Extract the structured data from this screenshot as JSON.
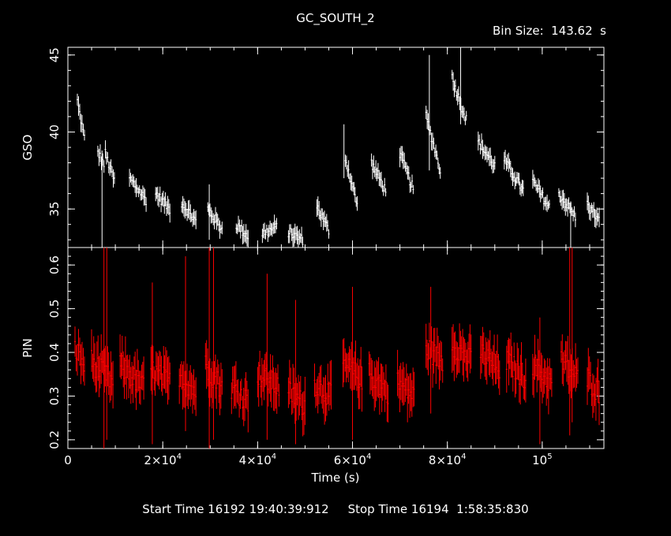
{
  "chart_data": {
    "type": "line",
    "title": "GC_SOUTH_2",
    "bin_size_label": "Bin Size:  143.62  s",
    "xlabel": "Time (s)",
    "start_time_label": "Start Time 16192 19:40:39:912",
    "stop_time_label": "Stop Time 16194  1:58:35:830",
    "x_range": [
      0,
      113000
    ],
    "x_ticks": [
      {
        "value": 0,
        "label": "0"
      },
      {
        "value": 20000,
        "label": "2×10",
        "exp": "4"
      },
      {
        "value": 40000,
        "label": "4×10",
        "exp": "4"
      },
      {
        "value": 60000,
        "label": "6×10",
        "exp": "4"
      },
      {
        "value": 80000,
        "label": "8×10",
        "exp": "4"
      },
      {
        "value": 100000,
        "label": "10",
        "exp": "5"
      }
    ],
    "panels": [
      {
        "name": "GSO",
        "ylabel": "GSO",
        "color": "#ffffff",
        "ylim": [
          32.5,
          45.5
        ],
        "y_ticks": [
          35,
          40,
          45
        ],
        "segments": [
          {
            "x0": 2000,
            "x1": 3500,
            "y0": 42.0,
            "y1": 39.6
          },
          {
            "x0": 6300,
            "x1": 7600,
            "y0": 38.7,
            "y1": 37.9
          },
          {
            "x0": 7900,
            "x1": 9800,
            "y0": 38.6,
            "y1": 36.8
          },
          {
            "x0": 13000,
            "x1": 16500,
            "y0": 37.0,
            "y1": 35.6
          },
          {
            "x0": 18500,
            "x1": 21500,
            "y0": 36.0,
            "y1": 35.0
          },
          {
            "x0": 24000,
            "x1": 27000,
            "y0": 35.4,
            "y1": 34.2
          },
          {
            "x0": 29500,
            "x1": 32500,
            "y0": 35.0,
            "y1": 33.7
          },
          {
            "x0": 35500,
            "x1": 38000,
            "y0": 34.0,
            "y1": 33.2
          },
          {
            "x0": 41000,
            "x1": 44000,
            "y0": 33.4,
            "y1": 33.8
          },
          {
            "x0": 46500,
            "x1": 49500,
            "y0": 33.5,
            "y1": 33.0
          },
          {
            "x0": 52500,
            "x1": 55000,
            "y0": 35.2,
            "y1": 33.6
          },
          {
            "x0": 58500,
            "x1": 61000,
            "y0": 38.3,
            "y1": 35.3
          },
          {
            "x0": 64000,
            "x1": 67000,
            "y0": 38.0,
            "y1": 36.2
          },
          {
            "x0": 70000,
            "x1": 72800,
            "y0": 38.6,
            "y1": 36.3
          },
          {
            "x0": 75500,
            "x1": 78500,
            "y0": 41.0,
            "y1": 37.6
          },
          {
            "x0": 81000,
            "x1": 84000,
            "y0": 43.5,
            "y1": 40.8
          },
          {
            "x0": 86500,
            "x1": 90000,
            "y0": 39.4,
            "y1": 37.8
          },
          {
            "x0": 92000,
            "x1": 96000,
            "y0": 38.2,
            "y1": 36.2
          },
          {
            "x0": 98000,
            "x1": 101500,
            "y0": 36.8,
            "y1": 35.1
          },
          {
            "x0": 103500,
            "x1": 107000,
            "y0": 36.0,
            "y1": 34.5
          },
          {
            "x0": 109500,
            "x1": 112000,
            "y0": 35.3,
            "y1": 34.2
          }
        ],
        "spikes": [
          {
            "x": 7200,
            "y0": 32.5,
            "y1": 38.8
          },
          {
            "x": 29800,
            "y0": 33.0,
            "y1": 36.6
          },
          {
            "x": 58200,
            "y0": 37.0,
            "y1": 40.5
          },
          {
            "x": 76200,
            "y0": 37.5,
            "y1": 45.0
          },
          {
            "x": 82800,
            "y0": 40.5,
            "y1": 45.5
          },
          {
            "x": 106000,
            "y0": 32.5,
            "y1": 35.5
          }
        ]
      },
      {
        "name": "PIN",
        "ylabel": "PIN",
        "color": "#ff0000",
        "ylim": [
          0.18,
          0.64
        ],
        "y_ticks": [
          0.2,
          0.3,
          0.4,
          0.5,
          0.6
        ],
        "segments": [
          {
            "x0": 1500,
            "x1": 3500,
            "y0": 0.41,
            "y1": 0.37
          },
          {
            "x0": 5000,
            "x1": 9500,
            "y0": 0.38,
            "y1": 0.33
          },
          {
            "x0": 11000,
            "x1": 16000,
            "y0": 0.37,
            "y1": 0.32
          },
          {
            "x0": 17500,
            "x1": 21500,
            "y0": 0.36,
            "y1": 0.33
          },
          {
            "x0": 23500,
            "x1": 27000,
            "y0": 0.35,
            "y1": 0.31
          },
          {
            "x0": 29000,
            "x1": 32500,
            "y0": 0.37,
            "y1": 0.32
          },
          {
            "x0": 34500,
            "x1": 38000,
            "y0": 0.32,
            "y1": 0.29
          },
          {
            "x0": 40000,
            "x1": 44500,
            "y0": 0.35,
            "y1": 0.32
          },
          {
            "x0": 46500,
            "x1": 50000,
            "y0": 0.31,
            "y1": 0.28
          },
          {
            "x0": 52000,
            "x1": 55500,
            "y0": 0.33,
            "y1": 0.3
          },
          {
            "x0": 58000,
            "x1": 62000,
            "y0": 0.37,
            "y1": 0.34
          },
          {
            "x0": 63500,
            "x1": 67500,
            "y0": 0.35,
            "y1": 0.31
          },
          {
            "x0": 69500,
            "x1": 73000,
            "y0": 0.33,
            "y1": 0.3
          },
          {
            "x0": 75500,
            "x1": 79000,
            "y0": 0.41,
            "y1": 0.38
          },
          {
            "x0": 81000,
            "x1": 85000,
            "y0": 0.42,
            "y1": 0.38
          },
          {
            "x0": 87000,
            "x1": 91000,
            "y0": 0.4,
            "y1": 0.36
          },
          {
            "x0": 92500,
            "x1": 96500,
            "y0": 0.38,
            "y1": 0.34
          },
          {
            "x0": 98000,
            "x1": 102000,
            "y0": 0.37,
            "y1": 0.33
          },
          {
            "x0": 104000,
            "x1": 107500,
            "y0": 0.38,
            "y1": 0.34
          },
          {
            "x0": 109500,
            "x1": 112000,
            "y0": 0.34,
            "y1": 0.31
          }
        ],
        "spikes": [
          {
            "x": 7600,
            "y0": 0.18,
            "y1": 0.64
          },
          {
            "x": 8200,
            "y0": 0.2,
            "y1": 0.64
          },
          {
            "x": 17800,
            "y0": 0.19,
            "y1": 0.56
          },
          {
            "x": 24800,
            "y0": 0.22,
            "y1": 0.62
          },
          {
            "x": 29800,
            "y0": 0.18,
            "y1": 0.64
          },
          {
            "x": 30700,
            "y0": 0.2,
            "y1": 0.64
          },
          {
            "x": 42000,
            "y0": 0.2,
            "y1": 0.58
          },
          {
            "x": 48000,
            "y0": 0.19,
            "y1": 0.52
          },
          {
            "x": 60000,
            "y0": 0.2,
            "y1": 0.55
          },
          {
            "x": 76500,
            "y0": 0.26,
            "y1": 0.55
          },
          {
            "x": 99500,
            "y0": 0.19,
            "y1": 0.48
          },
          {
            "x": 105800,
            "y0": 0.21,
            "y1": 0.64
          },
          {
            "x": 106300,
            "y0": 0.24,
            "y1": 0.64
          }
        ]
      }
    ]
  }
}
